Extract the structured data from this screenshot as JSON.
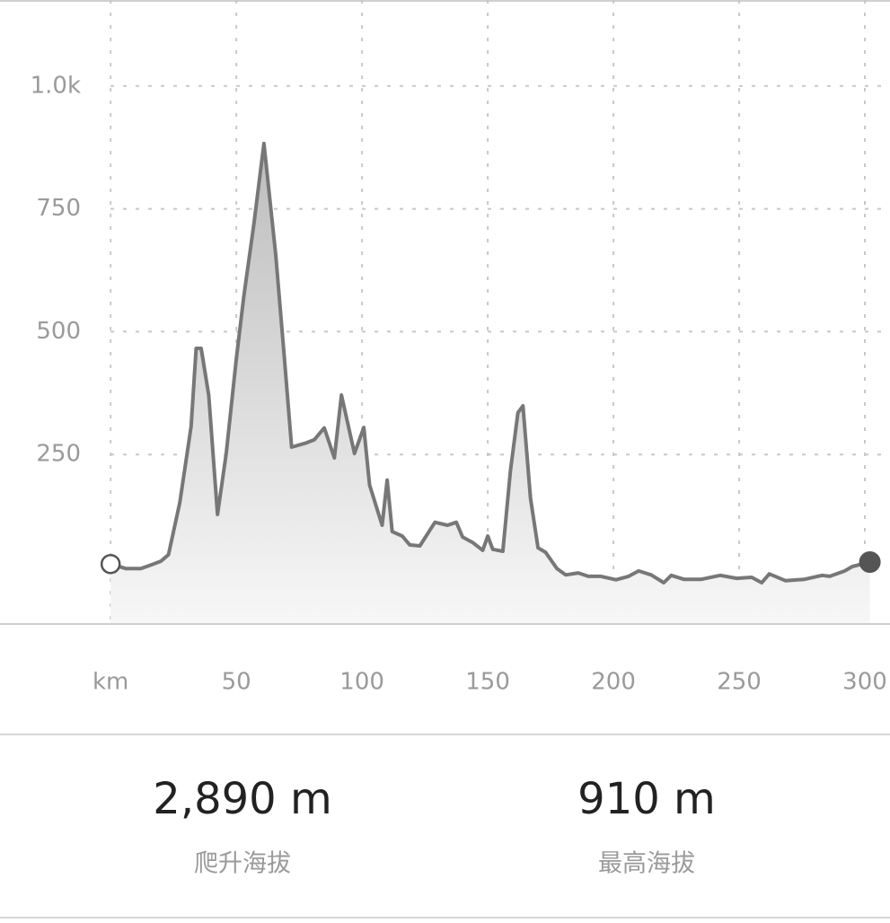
{
  "chart_data": {
    "type": "line",
    "x": [
      0,
      6,
      12,
      17,
      20,
      23,
      27.5,
      32,
      34,
      36,
      39,
      42.5,
      46,
      50,
      53,
      57,
      61,
      65.7,
      69,
      72,
      77.5,
      81,
      85,
      89,
      91.8,
      97,
      100.7,
      103,
      108,
      110,
      112,
      116,
      119,
      123,
      129,
      134,
      137.5,
      140,
      144,
      148,
      150,
      152,
      156,
      159,
      162,
      164,
      167,
      170,
      173,
      177.5,
      181,
      186,
      190,
      195,
      201,
      206,
      210,
      215,
      220,
      223,
      228,
      235,
      242.5,
      249,
      255,
      259,
      262,
      268.5,
      276,
      283,
      286,
      292,
      295,
      302
    ],
    "values": [
      27,
      18,
      18,
      27,
      33,
      46,
      152,
      307,
      466,
      466,
      371,
      128,
      252,
      444,
      572,
      719,
      883,
      655,
      454,
      265,
      273,
      280,
      304,
      243,
      371,
      252,
      305,
      188,
      106,
      198,
      93,
      84,
      66,
      64,
      112,
      106,
      112,
      82,
      71,
      55,
      84,
      57,
      53,
      216,
      335,
      349,
      161,
      60,
      51,
      18,
      5,
      9,
      2,
      2,
      -5,
      2,
      13,
      5,
      -11,
      4,
      -4,
      -4,
      4,
      -2,
      0,
      -11,
      7,
      -7,
      -4,
      4,
      2,
      13,
      22,
      31
    ],
    "color": "#777777",
    "xlim": [
      -44,
      310
    ],
    "xticks": [
      {
        "value": 0,
        "label": "km"
      },
      50,
      100,
      150,
      200,
      250,
      300
    ],
    "ylim": [
      -95,
      1175
    ],
    "yticks": [
      250,
      500,
      750,
      {
        "value": 1000,
        "label": "1.0k"
      }
    ],
    "grid": true
  },
  "stats": [
    {
      "value": "2,890 m",
      "label": "爬升海拔"
    },
    {
      "value": "910 m",
      "label": "最高海拔"
    }
  ]
}
